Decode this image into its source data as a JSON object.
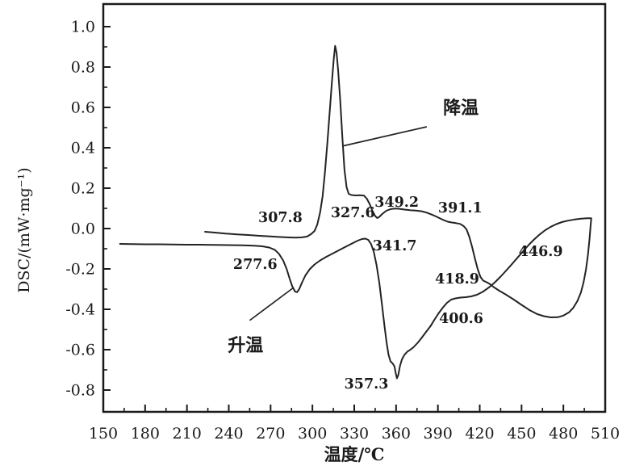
{
  "chart_data": {
    "type": "line",
    "title": "",
    "xlabel": "温度/℃",
    "ylabel": "DSC/(mW·mg⁻¹)",
    "grid": false,
    "legend": "none (curves labeled by in-plot arrows)",
    "x_axis": {
      "min": 150,
      "max": 510,
      "major_step": 30,
      "minor_step": 15,
      "ticks": [
        150,
        180,
        210,
        240,
        270,
        300,
        330,
        360,
        390,
        420,
        450,
        480,
        510
      ]
    },
    "y_axis": {
      "min": -0.908,
      "max": 1.112,
      "major_step": 0.2,
      "minor_step": 0.1,
      "ticks": [
        {
          "v": 1.0,
          "label": "1.0"
        },
        {
          "v": 0.8,
          "label": "0.8"
        },
        {
          "v": 0.6,
          "label": "0.6"
        },
        {
          "v": 0.4,
          "label": "0.4"
        },
        {
          "v": 0.2,
          "label": "0.2"
        },
        {
          "v": 0.0,
          "label": "0.0"
        },
        {
          "v": -0.2,
          "label": "-0.2"
        },
        {
          "v": -0.4,
          "label": "-0.4"
        },
        {
          "v": -0.6,
          "label": "-0.6"
        },
        {
          "v": -0.8,
          "label": "-0.8"
        }
      ]
    },
    "series": [
      {
        "key": "cooling",
        "name": "降温",
        "points": [
          [
            223,
            -0.016
          ],
          [
            230,
            -0.02
          ],
          [
            238,
            -0.025
          ],
          [
            246,
            -0.029
          ],
          [
            254,
            -0.032
          ],
          [
            262,
            -0.036
          ],
          [
            270,
            -0.039
          ],
          [
            277,
            -0.042
          ],
          [
            283,
            -0.044
          ],
          [
            288,
            -0.045
          ],
          [
            292,
            -0.044
          ],
          [
            296,
            -0.04
          ],
          [
            299,
            -0.028
          ],
          [
            301.5,
            -0.012
          ],
          [
            303.5,
            0.02
          ],
          [
            305.5,
            0.08
          ],
          [
            307.3,
            0.16
          ],
          [
            309,
            0.28
          ],
          [
            310.8,
            0.43
          ],
          [
            312.5,
            0.59
          ],
          [
            314,
            0.73
          ],
          [
            315.3,
            0.84
          ],
          [
            316.3,
            0.905
          ],
          [
            317.3,
            0.87
          ],
          [
            318.5,
            0.78
          ],
          [
            320,
            0.63
          ],
          [
            321.5,
            0.45
          ],
          [
            323,
            0.29
          ],
          [
            324.5,
            0.205
          ],
          [
            326,
            0.172
          ],
          [
            328,
            0.166
          ],
          [
            331,
            0.164
          ],
          [
            334,
            0.165
          ],
          [
            337,
            0.163
          ],
          [
            339,
            0.148
          ],
          [
            341,
            0.122
          ],
          [
            343,
            0.088
          ],
          [
            345,
            0.062
          ],
          [
            346.5,
            0.052
          ],
          [
            348,
            0.058
          ],
          [
            350,
            0.072
          ],
          [
            353,
            0.088
          ],
          [
            356,
            0.096
          ],
          [
            359,
            0.099
          ],
          [
            362,
            0.098
          ],
          [
            366,
            0.094
          ],
          [
            370,
            0.091
          ],
          [
            374,
            0.089
          ],
          [
            378,
            0.086
          ],
          [
            382,
            0.079
          ],
          [
            385,
            0.071
          ],
          [
            388,
            0.062
          ],
          [
            391,
            0.052
          ],
          [
            394,
            0.042
          ],
          [
            397,
            0.034
          ],
          [
            400,
            0.03
          ],
          [
            403,
            0.027
          ],
          [
            406,
            0.023
          ],
          [
            408.5,
            0.012
          ],
          [
            410.5,
            -0.004
          ],
          [
            412.5,
            -0.04
          ],
          [
            414.5,
            -0.09
          ],
          [
            416.5,
            -0.148
          ],
          [
            418.5,
            -0.2
          ],
          [
            420.5,
            -0.24
          ],
          [
            422.5,
            -0.258
          ],
          [
            425,
            -0.266
          ],
          [
            427.5,
            -0.276
          ],
          [
            430,
            -0.29
          ],
          [
            434,
            -0.308
          ],
          [
            439,
            -0.328
          ],
          [
            444,
            -0.35
          ],
          [
            450,
            -0.378
          ],
          [
            456,
            -0.405
          ],
          [
            461,
            -0.423
          ],
          [
            466,
            -0.434
          ],
          [
            471,
            -0.44
          ],
          [
            476,
            -0.439
          ],
          [
            480,
            -0.431
          ],
          [
            484,
            -0.415
          ],
          [
            487,
            -0.393
          ],
          [
            490,
            -0.36
          ],
          [
            492.5,
            -0.318
          ],
          [
            494.5,
            -0.266
          ],
          [
            496.2,
            -0.202
          ],
          [
            497.6,
            -0.13
          ],
          [
            498.8,
            -0.05
          ],
          [
            499.6,
            0.02
          ],
          [
            500,
            0.05
          ]
        ]
      },
      {
        "key": "heating",
        "name": "升温",
        "points": [
          [
            162,
            -0.076
          ],
          [
            170,
            -0.077
          ],
          [
            180,
            -0.078
          ],
          [
            190,
            -0.078
          ],
          [
            200,
            -0.079
          ],
          [
            210,
            -0.08
          ],
          [
            220,
            -0.08
          ],
          [
            230,
            -0.081
          ],
          [
            240,
            -0.082
          ],
          [
            250,
            -0.083
          ],
          [
            258,
            -0.085
          ],
          [
            264,
            -0.088
          ],
          [
            269,
            -0.094
          ],
          [
            273,
            -0.105
          ],
          [
            276,
            -0.125
          ],
          [
            279,
            -0.158
          ],
          [
            281.5,
            -0.2
          ],
          [
            283.5,
            -0.245
          ],
          [
            285.5,
            -0.285
          ],
          [
            287.5,
            -0.312
          ],
          [
            289,
            -0.315
          ],
          [
            290.5,
            -0.3
          ],
          [
            292.5,
            -0.268
          ],
          [
            295,
            -0.232
          ],
          [
            298,
            -0.202
          ],
          [
            301.5,
            -0.178
          ],
          [
            305.5,
            -0.158
          ],
          [
            310,
            -0.14
          ],
          [
            315,
            -0.122
          ],
          [
            320,
            -0.104
          ],
          [
            325,
            -0.086
          ],
          [
            329,
            -0.072
          ],
          [
            332.5,
            -0.06
          ],
          [
            335.5,
            -0.052
          ],
          [
            338,
            -0.05
          ],
          [
            340,
            -0.056
          ],
          [
            342,
            -0.075
          ],
          [
            344,
            -0.115
          ],
          [
            346,
            -0.18
          ],
          [
            348,
            -0.27
          ],
          [
            350,
            -0.385
          ],
          [
            351.8,
            -0.49
          ],
          [
            353.2,
            -0.565
          ],
          [
            354.6,
            -0.625
          ],
          [
            356,
            -0.658
          ],
          [
            357.5,
            -0.668
          ],
          [
            358.8,
            -0.682
          ],
          [
            359.8,
            -0.718
          ],
          [
            360.6,
            -0.742
          ],
          [
            361.6,
            -0.725
          ],
          [
            362.8,
            -0.68
          ],
          [
            364.2,
            -0.648
          ],
          [
            366,
            -0.625
          ],
          [
            368,
            -0.61
          ],
          [
            370,
            -0.601
          ],
          [
            372.5,
            -0.588
          ],
          [
            375.5,
            -0.566
          ],
          [
            378.5,
            -0.54
          ],
          [
            381.5,
            -0.512
          ],
          [
            384.5,
            -0.485
          ],
          [
            387.5,
            -0.452
          ],
          [
            390.5,
            -0.42
          ],
          [
            393.5,
            -0.392
          ],
          [
            396.5,
            -0.368
          ],
          [
            399.5,
            -0.352
          ],
          [
            402.5,
            -0.346
          ],
          [
            406,
            -0.342
          ],
          [
            410,
            -0.34
          ],
          [
            414,
            -0.336
          ],
          [
            418,
            -0.328
          ],
          [
            422,
            -0.314
          ],
          [
            425.5,
            -0.297
          ],
          [
            428.5,
            -0.281
          ],
          [
            431.5,
            -0.262
          ],
          [
            435,
            -0.238
          ],
          [
            439,
            -0.208
          ],
          [
            443,
            -0.177
          ],
          [
            447,
            -0.145
          ],
          [
            451,
            -0.113
          ],
          [
            455,
            -0.082
          ],
          [
            459,
            -0.054
          ],
          [
            463,
            -0.029
          ],
          [
            467,
            -0.008
          ],
          [
            471,
            0.009
          ],
          [
            475,
            0.022
          ],
          [
            479,
            0.032
          ],
          [
            483,
            0.039
          ],
          [
            488,
            0.045
          ],
          [
            493,
            0.049
          ],
          [
            497,
            0.051
          ],
          [
            500,
            0.051
          ]
        ]
      }
    ],
    "annotations": [
      {
        "text": "307.8",
        "t": 277.0,
        "v": 0.056
      },
      {
        "text": "327.6",
        "t": 329.0,
        "v": 0.08
      },
      {
        "text": "349.2",
        "t": 360.5,
        "v": 0.132
      },
      {
        "text": "391.1",
        "t": 406.0,
        "v": 0.104
      },
      {
        "text": "277.6",
        "t": 259.0,
        "v": -0.176
      },
      {
        "text": "341.7",
        "t": 359.0,
        "v": -0.084
      },
      {
        "text": "418.9",
        "t": 403.8,
        "v": -0.248
      },
      {
        "text": "446.9",
        "t": 463.8,
        "v": -0.112
      },
      {
        "text": "400.6",
        "t": 406.7,
        "v": -0.444
      },
      {
        "text": "357.3",
        "t": 338.7,
        "v": -0.768
      }
    ],
    "curve_labels": [
      {
        "key": "cooling-label",
        "text": "降温",
        "t": 406.5,
        "v": 0.6,
        "leader": [
          [
            382,
            0.504
          ],
          [
            322.5,
            0.41
          ]
        ]
      },
      {
        "key": "heating-label",
        "text": "升温",
        "t": 252.0,
        "v": -0.575,
        "leader": [
          [
            255,
            -0.455
          ],
          [
            286,
            -0.295
          ]
        ]
      }
    ],
    "colors": {
      "line": "#232323",
      "axis": "#1a1a1a",
      "background": "#ffffff"
    }
  }
}
